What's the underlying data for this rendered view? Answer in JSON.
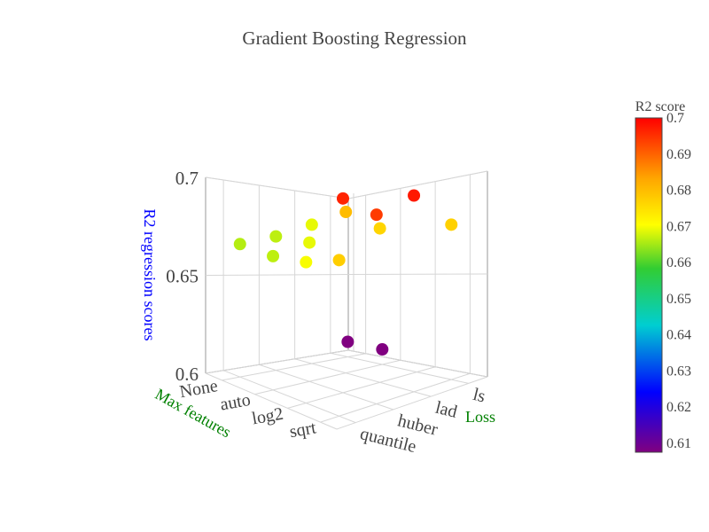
{
  "chart_data": {
    "type": "scatter3d",
    "title": "Gradient Boosting Regression",
    "x_axis": {
      "label": "Max features",
      "categories": [
        "None",
        "auto",
        "log2",
        "sqrt"
      ],
      "color": "#008000"
    },
    "y_axis": {
      "label": "Loss",
      "categories": [
        "quantile",
        "huber",
        "lad",
        "ls"
      ],
      "color": "#008000"
    },
    "z_axis": {
      "label": "R2 regression scores",
      "ticks": [
        "0.6",
        "0.65",
        "0.7"
      ],
      "range": [
        0.6,
        0.7
      ],
      "color": "#0000ff"
    },
    "colorbar": {
      "title": "R2 score",
      "ticks": [
        "0.61",
        "0.62",
        "0.63",
        "0.64",
        "0.65",
        "0.66",
        "0.67",
        "0.68",
        "0.69",
        "0.7"
      ],
      "range": [
        0.6075,
        0.7
      ],
      "colorscale": [
        "#800080",
        "#0000ff",
        "#00ced1",
        "#32cd32",
        "#ffff00",
        "#ffa500",
        "#ff0000"
      ]
    },
    "points": [
      {
        "max_features": "None",
        "loss": "ls",
        "r2": 0.666
      },
      {
        "max_features": "None",
        "loss": "lad",
        "r2": 0.6665
      },
      {
        "max_features": "None",
        "loss": "huber",
        "r2": 0.669
      },
      {
        "max_features": "None",
        "loss": "quantile",
        "r2": 0.6075
      },
      {
        "max_features": "auto",
        "loss": "ls",
        "r2": 0.6665
      },
      {
        "max_features": "auto",
        "loss": "lad",
        "r2": 0.669
      },
      {
        "max_features": "auto",
        "loss": "huber",
        "r2": 0.68
      },
      {
        "max_features": "auto",
        "loss": "quantile",
        "r2": 0.6075
      },
      {
        "max_features": "log2",
        "loss": "ls",
        "r2": 0.67
      },
      {
        "max_features": "log2",
        "loss": "lad",
        "r2": 0.6965
      },
      {
        "max_features": "log2",
        "loss": "huber",
        "r2": 0.6765
      },
      {
        "max_features": "sqrt",
        "loss": "ls",
        "r2": 0.6775
      },
      {
        "max_features": "sqrt",
        "loss": "lad",
        "r2": 0.694
      },
      {
        "max_features": "sqrt",
        "loss": "huber",
        "r2": 0.6975
      },
      {
        "max_features": "sqrt",
        "loss": "quantile",
        "r2": 0.677
      }
    ]
  }
}
